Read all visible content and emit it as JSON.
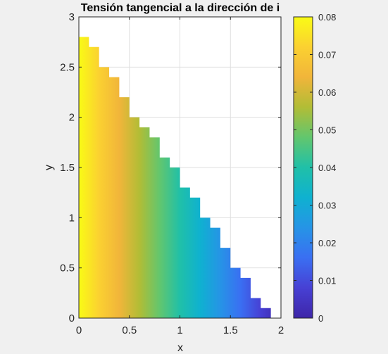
{
  "chart_data": {
    "type": "heatmap",
    "title": "Tensión tangencial a la dirección de i",
    "xlabel": "x",
    "ylabel": "y",
    "xlim": [
      0,
      2
    ],
    "ylim": [
      0,
      3
    ],
    "x_ticks": [
      "0",
      "0.5",
      "1",
      "1.5",
      "2"
    ],
    "y_ticks": [
      "0",
      "0.5",
      "1",
      "1.5",
      "2",
      "2.5",
      "3"
    ],
    "grid": true,
    "colormap": "parula",
    "clim": [
      0,
      0.08
    ],
    "colorbar_ticks": [
      "0",
      "0.01",
      "0.02",
      "0.03",
      "0.04",
      "0.05",
      "0.06",
      "0.07",
      "0.08"
    ],
    "column_width": 0.1,
    "columns": [
      {
        "x_start": 0.0,
        "y_top": 2.8
      },
      {
        "x_start": 0.1,
        "y_top": 2.7
      },
      {
        "x_start": 0.2,
        "y_top": 2.5
      },
      {
        "x_start": 0.3,
        "y_top": 2.4
      },
      {
        "x_start": 0.4,
        "y_top": 2.2
      },
      {
        "x_start": 0.5,
        "y_top": 2.0
      },
      {
        "x_start": 0.6,
        "y_top": 1.9
      },
      {
        "x_start": 0.7,
        "y_top": 1.8
      },
      {
        "x_start": 0.8,
        "y_top": 1.6
      },
      {
        "x_start": 0.9,
        "y_top": 1.5
      },
      {
        "x_start": 1.0,
        "y_top": 1.3
      },
      {
        "x_start": 1.1,
        "y_top": 1.2
      },
      {
        "x_start": 1.2,
        "y_top": 1.0
      },
      {
        "x_start": 1.3,
        "y_top": 0.9
      },
      {
        "x_start": 1.4,
        "y_top": 0.7
      },
      {
        "x_start": 1.5,
        "y_top": 0.5
      },
      {
        "x_start": 1.6,
        "y_top": 0.4
      },
      {
        "x_start": 1.7,
        "y_top": 0.2
      },
      {
        "x_start": 1.8,
        "y_top": 0.1
      }
    ],
    "value_trend": "value decreases linearly with x from about 0.08 at x=0 to about 0 at x=2, constant in y"
  }
}
